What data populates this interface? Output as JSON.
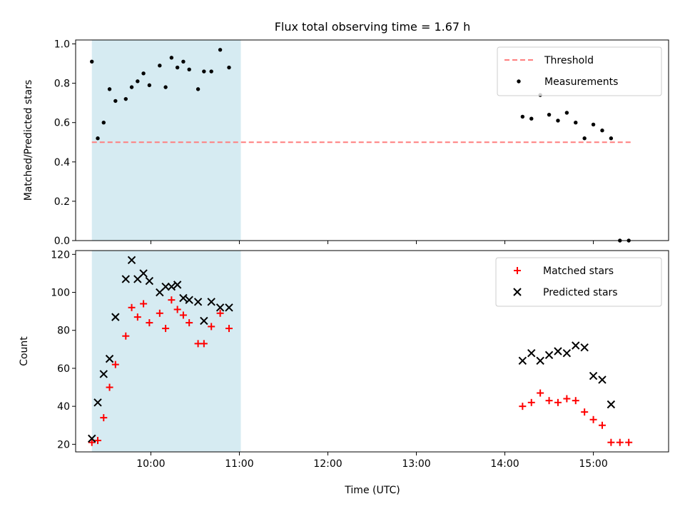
{
  "figure": {
    "title": "Flux total observing time = 1.67 h",
    "xlabel": "Time (UTC)"
  },
  "chart_data": [
    {
      "type": "scatter",
      "ylabel": "Matched/Predicted stars",
      "xlim": [
        "09:09",
        "15:51"
      ],
      "ylim": [
        0.0,
        1.02
      ],
      "x_ticks": [
        "10:00",
        "11:00",
        "12:00",
        "13:00",
        "14:00",
        "15:00"
      ],
      "y_ticks": [
        "0.0",
        "0.2",
        "0.4",
        "0.6",
        "0.8",
        "1.0"
      ],
      "shaded_region": {
        "start": "09:20",
        "end": "11:01",
        "color": "#add8e6"
      },
      "legend_position": "upper right",
      "threshold": {
        "name": "Threshold",
        "value": 0.5,
        "x": [
          "09:20",
          "15:27"
        ],
        "color": "#ff7f7f",
        "style": "dashed"
      },
      "series": [
        {
          "name": "Measurements",
          "marker": "dot",
          "color": "#000000",
          "points": [
            [
              "09:20",
              0.91
            ],
            [
              "09:24",
              0.52
            ],
            [
              "09:28",
              0.6
            ],
            [
              "09:32",
              0.77
            ],
            [
              "09:36",
              0.71
            ],
            [
              "09:43",
              0.72
            ],
            [
              "09:47",
              0.78
            ],
            [
              "09:51",
              0.81
            ],
            [
              "09:55",
              0.85
            ],
            [
              "09:59",
              0.79
            ],
            [
              "10:06",
              0.89
            ],
            [
              "10:10",
              0.78
            ],
            [
              "10:14",
              0.93
            ],
            [
              "10:18",
              0.88
            ],
            [
              "10:22",
              0.91
            ],
            [
              "10:26",
              0.87
            ],
            [
              "10:32",
              0.77
            ],
            [
              "10:36",
              0.86
            ],
            [
              "10:41",
              0.86
            ],
            [
              "10:47",
              0.97
            ],
            [
              "10:53",
              0.88
            ],
            [
              "14:12",
              0.63
            ],
            [
              "14:18",
              0.62
            ],
            [
              "14:24",
              0.74
            ],
            [
              "14:30",
              0.64
            ],
            [
              "14:36",
              0.61
            ],
            [
              "14:42",
              0.65
            ],
            [
              "14:48",
              0.6
            ],
            [
              "14:54",
              0.52
            ],
            [
              "15:00",
              0.59
            ],
            [
              "15:06",
              0.56
            ],
            [
              "15:12",
              0.52
            ],
            [
              "15:18",
              0.0
            ],
            [
              "15:24",
              0.0
            ]
          ]
        }
      ]
    },
    {
      "type": "scatter",
      "ylabel": "Count",
      "xlim": [
        "09:09",
        "15:51"
      ],
      "ylim": [
        16,
        122
      ],
      "x_ticks": [
        "10:00",
        "11:00",
        "12:00",
        "13:00",
        "14:00",
        "15:00"
      ],
      "y_ticks": [
        "20",
        "40",
        "60",
        "80",
        "100",
        "120"
      ],
      "shaded_region": {
        "start": "09:20",
        "end": "11:01",
        "color": "#add8e6"
      },
      "legend_position": "upper right",
      "series": [
        {
          "name": "Matched stars",
          "marker": "plus",
          "color": "#ff0000",
          "points": [
            [
              "09:20",
              21
            ],
            [
              "09:24",
              22
            ],
            [
              "09:28",
              34
            ],
            [
              "09:32",
              50
            ],
            [
              "09:36",
              62
            ],
            [
              "09:43",
              77
            ],
            [
              "09:47",
              92
            ],
            [
              "09:51",
              87
            ],
            [
              "09:55",
              94
            ],
            [
              "09:59",
              84
            ],
            [
              "10:06",
              89
            ],
            [
              "10:10",
              81
            ],
            [
              "10:14",
              96
            ],
            [
              "10:18",
              91
            ],
            [
              "10:22",
              88
            ],
            [
              "10:26",
              84
            ],
            [
              "10:32",
              73
            ],
            [
              "10:36",
              73
            ],
            [
              "10:41",
              82
            ],
            [
              "10:47",
              89
            ],
            [
              "10:53",
              81
            ],
            [
              "14:12",
              40
            ],
            [
              "14:18",
              42
            ],
            [
              "14:24",
              47
            ],
            [
              "14:30",
              43
            ],
            [
              "14:36",
              42
            ],
            [
              "14:42",
              44
            ],
            [
              "14:48",
              43
            ],
            [
              "14:54",
              37
            ],
            [
              "15:00",
              33
            ],
            [
              "15:06",
              30
            ],
            [
              "15:12",
              21
            ],
            [
              "15:18",
              21
            ],
            [
              "15:24",
              21
            ]
          ]
        },
        {
          "name": "Predicted stars",
          "marker": "x",
          "color": "#000000",
          "points": [
            [
              "09:20",
              23
            ],
            [
              "09:24",
              42
            ],
            [
              "09:28",
              57
            ],
            [
              "09:32",
              65
            ],
            [
              "09:36",
              87
            ],
            [
              "09:43",
              107
            ],
            [
              "09:47",
              117
            ],
            [
              "09:51",
              107
            ],
            [
              "09:55",
              110
            ],
            [
              "09:59",
              106
            ],
            [
              "10:06",
              100
            ],
            [
              "10:10",
              103
            ],
            [
              "10:14",
              103
            ],
            [
              "10:18",
              104
            ],
            [
              "10:22",
              97
            ],
            [
              "10:26",
              96
            ],
            [
              "10:32",
              95
            ],
            [
              "10:36",
              85
            ],
            [
              "10:41",
              95
            ],
            [
              "10:47",
              92
            ],
            [
              "10:53",
              92
            ],
            [
              "14:12",
              64
            ],
            [
              "14:18",
              68
            ],
            [
              "14:24",
              64
            ],
            [
              "14:30",
              67
            ],
            [
              "14:36",
              69
            ],
            [
              "14:42",
              68
            ],
            [
              "14:48",
              72
            ],
            [
              "14:54",
              71
            ],
            [
              "15:00",
              56
            ],
            [
              "15:06",
              54
            ],
            [
              "15:12",
              41
            ]
          ]
        }
      ]
    }
  ]
}
